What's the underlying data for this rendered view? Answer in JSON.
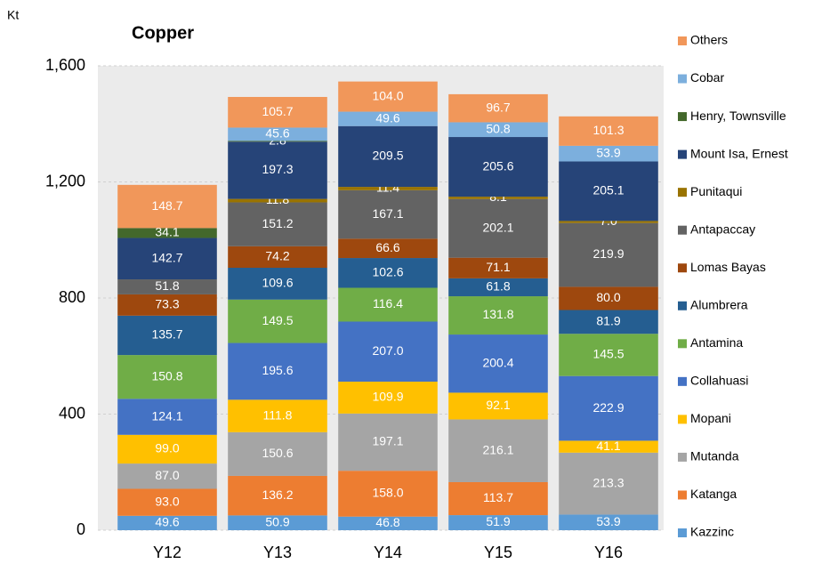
{
  "chart_data": {
    "type": "stacked_bar",
    "title": "Copper",
    "y_label": "Kt",
    "categories": [
      "Y12",
      "Y13",
      "Y14",
      "Y15",
      "Y16"
    ],
    "ylim": [
      0,
      1600
    ],
    "yticks": [
      0,
      400,
      800,
      {
        "value": 1200,
        "label": "1,200"
      },
      {
        "value": 1600,
        "label": "1,600"
      }
    ],
    "grid": true,
    "legend": "right",
    "series": [
      {
        "name": "Kazzinc",
        "color": "#5b9bd5",
        "values": [
          49.6,
          50.9,
          46.8,
          51.9,
          53.9
        ],
        "value_labels": [
          "49.6",
          "50.9",
          "46.8",
          "51.9",
          "53.9"
        ]
      },
      {
        "name": "Katanga",
        "color": "#ed7d31",
        "values": [
          93.0,
          136.2,
          158.0,
          113.7,
          null
        ],
        "value_labels": [
          "93.0",
          "136.2",
          "158.0",
          "113.7",
          null
        ]
      },
      {
        "name": "Mutanda",
        "color": "#a5a5a5",
        "values": [
          87.0,
          150.6,
          197.1,
          216.1,
          213.3
        ],
        "value_labels": [
          "87.0",
          "150.6",
          "197.1",
          "216.1",
          "213.3"
        ]
      },
      {
        "name": "Mopani",
        "color": "#ffc000",
        "values": [
          99.0,
          111.8,
          109.9,
          92.1,
          41.1
        ],
        "value_labels": [
          "99.0",
          "111.8",
          "109.9",
          "92.1",
          "41.1"
        ]
      },
      {
        "name": "Collahuasi",
        "color": "#4472c4",
        "values": [
          124.1,
          195.6,
          207.0,
          200.4,
          222.9
        ],
        "value_labels": [
          "124.1",
          "195.6",
          "207.0",
          "200.4",
          "222.9"
        ]
      },
      {
        "name": "Antamina",
        "color": "#70ad47",
        "values": [
          150.8,
          149.5,
          116.4,
          131.8,
          145.5
        ],
        "value_labels": [
          "150.8",
          "149.5",
          "116.4",
          "131.8",
          "145.5"
        ]
      },
      {
        "name": "Alumbrera",
        "color": "#255e91",
        "values": [
          135.7,
          109.6,
          102.6,
          61.8,
          81.9
        ],
        "value_labels": [
          "135.7",
          "109.6",
          "102.6",
          "61.8",
          "81.9"
        ]
      },
      {
        "name": "Lomas Bayas",
        "color": "#9e480e",
        "values": [
          73.3,
          74.2,
          66.6,
          71.1,
          80.0
        ],
        "value_labels": [
          "73.3",
          "74.2",
          "66.6",
          "71.1",
          "80.0"
        ]
      },
      {
        "name": "Antapaccay",
        "color": "#636363",
        "values": [
          51.8,
          151.2,
          167.1,
          202.1,
          219.9
        ],
        "value_labels": [
          "51.8",
          "151.2",
          "167.1",
          "202.1",
          "219.9"
        ]
      },
      {
        "name": "Punitaqui",
        "color": "#997300",
        "values": [
          null,
          11.8,
          11.4,
          8.1,
          7.0
        ],
        "value_labels": [
          null,
          "11.8",
          "11.4",
          "8.1",
          "7.0"
        ]
      },
      {
        "name": "Mount Isa, Ernest",
        "color": "#264478",
        "values": [
          142.7,
          197.3,
          209.5,
          205.6,
          205.1
        ],
        "value_labels": [
          "142.7",
          "197.3",
          "209.5",
          "205.6",
          "205.1"
        ]
      },
      {
        "name": "Henry, Townsville",
        "color": "#43682b",
        "values": [
          34.1,
          2.8,
          null,
          null,
          null
        ],
        "value_labels": [
          "34.1",
          "2.8",
          null,
          null,
          null
        ]
      },
      {
        "name": "Cobar",
        "color": "#7cafdd",
        "values": [
          null,
          45.6,
          49.6,
          50.8,
          53.9
        ],
        "value_labels": [
          null,
          "45.6",
          "49.6",
          "50.8",
          "53.9"
        ]
      },
      {
        "name": "Others",
        "color": "#f1975a",
        "values": [
          148.7,
          105.7,
          104.0,
          96.7,
          101.3
        ],
        "value_labels": [
          "148.7",
          "105.7",
          "104.0",
          "96.7",
          "101.3"
        ]
      }
    ]
  }
}
